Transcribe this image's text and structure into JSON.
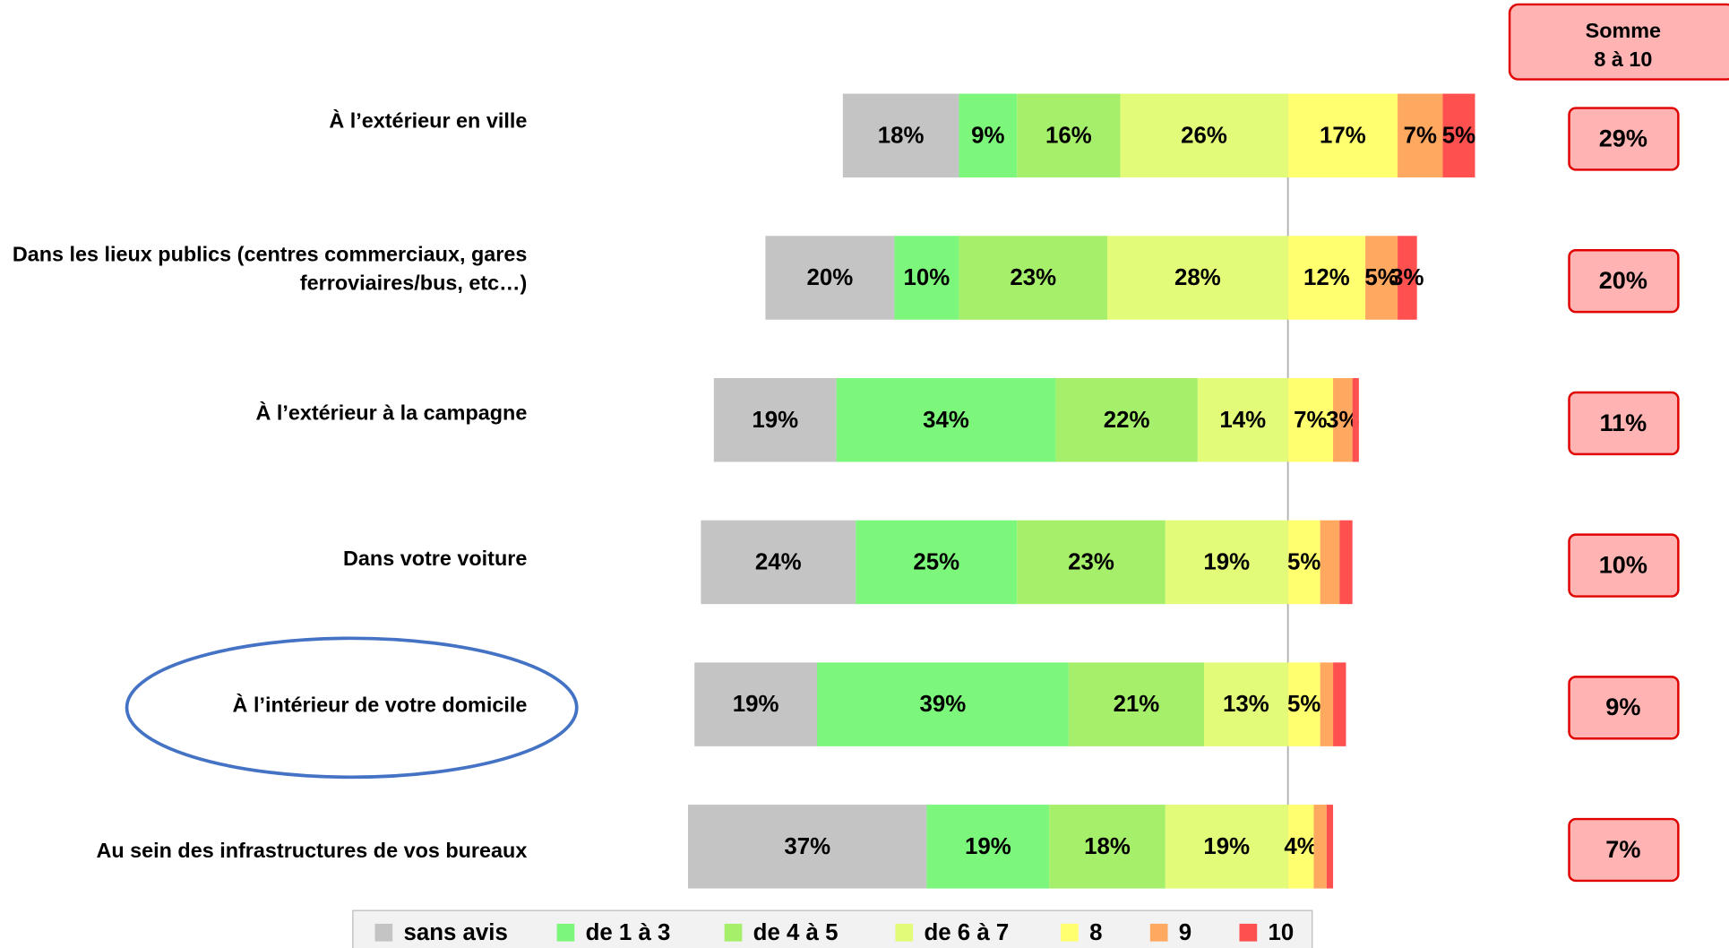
{
  "chart_data": {
    "type": "diverging-bar",
    "categories": [
      "À l’extérieur en ville",
      "Dans les lieux publics (centres commerciaux, gares ferroviaires/bus, etc…)",
      "À l’extérieur à la campagne",
      "Dans votre voiture",
      "À l’intérieur de votre domicile",
      "Au sein des infrastructures de vos bureaux"
    ],
    "series": [
      {
        "name": "sans avis",
        "color": "#c4c4c4",
        "side": "left",
        "values": [
          18,
          20,
          19,
          24,
          19,
          37
        ],
        "value_labels": [
          "18%",
          "20%",
          "19%",
          "24%",
          "19%",
          "37%"
        ]
      },
      {
        "name": "de 1 à 3",
        "color": "#7cf77c",
        "side": "left",
        "values": [
          9,
          10,
          34,
          25,
          39,
          19
        ],
        "value_labels": [
          "9%",
          "10%",
          "34%",
          "25%",
          "39%",
          "19%"
        ]
      },
      {
        "name": "de 4 à 5",
        "color": "#a6ef6a",
        "side": "left",
        "values": [
          16,
          23,
          22,
          23,
          21,
          18
        ],
        "value_labels": [
          "16%",
          "23%",
          "22%",
          "23%",
          "21%",
          "18%"
        ]
      },
      {
        "name": "de 6 à 7",
        "color": "#e2fb78",
        "side": "left",
        "values": [
          26,
          28,
          14,
          19,
          13,
          19
        ],
        "value_labels": [
          "26%",
          "28%",
          "14%",
          "19%",
          "13%",
          "19%"
        ]
      },
      {
        "name": "8",
        "color": "#ffff70",
        "side": "right",
        "values": [
          17,
          12,
          7,
          5,
          5,
          4
        ],
        "value_labels": [
          "17%",
          "12%",
          "7%",
          "5%",
          "5%",
          "4%"
        ]
      },
      {
        "name": "9",
        "color": "#ffa860",
        "side": "right",
        "values": [
          7,
          5,
          3,
          3,
          2,
          2
        ],
        "value_labels": [
          "7%",
          "5%",
          "3%",
          null,
          null,
          null
        ]
      },
      {
        "name": "10",
        "color": "#ff5050",
        "side": "right",
        "values": [
          5,
          3,
          1,
          2,
          2,
          1
        ],
        "value_labels": [
          "5%",
          "3%",
          null,
          null,
          null,
          null
        ]
      }
    ],
    "sum": {
      "title": [
        "Somme",
        "8 à 10"
      ],
      "values": [
        29,
        20,
        11,
        10,
        9,
        7
      ],
      "value_labels": [
        "29%",
        "20%",
        "11%",
        "10%",
        "9%",
        "7%"
      ]
    }
  }
}
